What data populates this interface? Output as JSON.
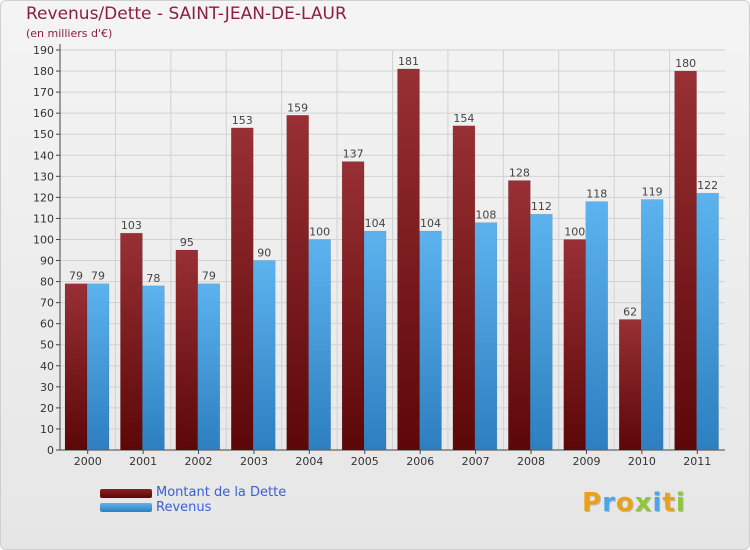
{
  "header": {
    "title": "Revenus/Dette - SAINT-JEAN-DE-LAUR",
    "subtitle": "(en milliers d'€)"
  },
  "legend": {
    "items": [
      {
        "label": "Montant de la Dette",
        "color": "#7a1518"
      },
      {
        "label": "Revenus",
        "color": "#4ba6e6"
      }
    ]
  },
  "logo": {
    "text": "Proxiti",
    "letters": [
      "P",
      "r",
      "o",
      "x",
      "i",
      "t",
      "i"
    ],
    "colors": [
      "#e8a21a",
      "#4ba6e6",
      "#e8a21a",
      "#8ec63f",
      "#4ba6e6",
      "#e8a21a",
      "#8ec63f"
    ]
  },
  "chart_data": {
    "type": "bar",
    "categories": [
      "2000",
      "2001",
      "2002",
      "2003",
      "2004",
      "2005",
      "2006",
      "2007",
      "2008",
      "2009",
      "2010",
      "2011"
    ],
    "series": [
      {
        "name": "Montant de la Dette",
        "values": [
          79,
          103,
          95,
          153,
          159,
          137,
          181,
          154,
          128,
          100,
          62,
          180
        ],
        "color": "#7a1518"
      },
      {
        "name": "Revenus",
        "values": [
          79,
          78,
          79,
          90,
          100,
          104,
          104,
          108,
          112,
          118,
          119,
          122
        ],
        "color": "#4ba6e6"
      }
    ],
    "ylim": [
      0,
      190
    ],
    "ytick_step": 10,
    "grid": true,
    "legend_position": "bottom-left",
    "xlabel": "",
    "ylabel": ""
  }
}
